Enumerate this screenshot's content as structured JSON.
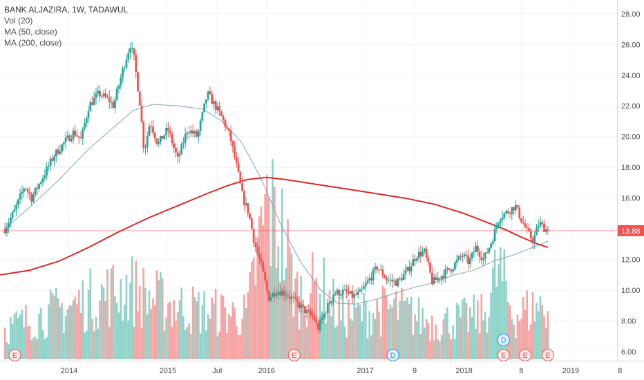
{
  "legend": {
    "title": "BANK ALJAZIRA, 1W, TADAWUL",
    "vol": "Vol (20)",
    "ma50": "MA (50, close)",
    "ma200": "MA (200, close)"
  },
  "colors": {
    "up": "#26a69a",
    "down": "#ef5350",
    "vol_up": "#8fd2c7",
    "vol_down": "#f5a3a2",
    "ma50": "#7fa8b8",
    "ma200": "#e02727",
    "price_line": "#ef5350",
    "axis_text": "#4a4a4a",
    "grid": "#f0f3fa"
  },
  "chart_data": {
    "type": "candlestick",
    "ylim": [
      5.6,
      28.8
    ],
    "y_ticks": [
      "6.00",
      "8.00",
      "10.00",
      "12.00",
      "14.00",
      "16.00",
      "18.00",
      "20.00",
      "22.00",
      "24.00",
      "26.00",
      "28.00"
    ],
    "x_tick_labels": [
      "2014",
      "2015",
      "Jul",
      "2016",
      "2017",
      "9",
      "2018",
      "8",
      "2019",
      "8"
    ],
    "last_price": "13.88",
    "close_path": [
      [
        2013.35,
        14.0
      ],
      [
        2013.45,
        15.2
      ],
      [
        2013.55,
        16.8
      ],
      [
        2013.62,
        16.0
      ],
      [
        2013.72,
        17.2
      ],
      [
        2013.85,
        18.8
      ],
      [
        2013.95,
        19.6
      ],
      [
        2014.05,
        20.3
      ],
      [
        2014.12,
        19.8
      ],
      [
        2014.2,
        22.0
      ],
      [
        2014.3,
        22.8
      ],
      [
        2014.4,
        22.4
      ],
      [
        2014.45,
        22.0
      ],
      [
        2014.55,
        24.5
      ],
      [
        2014.62,
        26.0
      ],
      [
        2014.66,
        25.0
      ],
      [
        2014.72,
        22.0
      ],
      [
        2014.76,
        19.0
      ],
      [
        2014.82,
        21.0
      ],
      [
        2014.9,
        19.5
      ],
      [
        2015.0,
        20.5
      ],
      [
        2015.1,
        18.5
      ],
      [
        2015.2,
        20.5
      ],
      [
        2015.3,
        20.0
      ],
      [
        2015.4,
        22.8
      ],
      [
        2015.48,
        22.0
      ],
      [
        2015.55,
        21.2
      ],
      [
        2015.63,
        20.0
      ],
      [
        2015.7,
        18.0
      ],
      [
        2015.76,
        16.0
      ],
      [
        2015.82,
        15.0
      ],
      [
        2015.88,
        13.0
      ],
      [
        2015.95,
        11.5
      ],
      [
        2016.02,
        9.5
      ],
      [
        2016.1,
        10.0
      ],
      [
        2016.2,
        9.8
      ],
      [
        2016.3,
        9.2
      ],
      [
        2016.4,
        8.6
      ],
      [
        2016.48,
        8.2
      ],
      [
        2016.52,
        7.5
      ],
      [
        2016.6,
        8.7
      ],
      [
        2016.68,
        9.8
      ],
      [
        2016.78,
        9.9
      ],
      [
        2016.88,
        9.6
      ],
      [
        2016.95,
        9.8
      ],
      [
        2017.05,
        10.8
      ],
      [
        2017.12,
        11.5
      ],
      [
        2017.22,
        10.7
      ],
      [
        2017.32,
        10.5
      ],
      [
        2017.42,
        11.2
      ],
      [
        2017.52,
        12.3
      ],
      [
        2017.6,
        12.5
      ],
      [
        2017.68,
        10.5
      ],
      [
        2017.78,
        11.0
      ],
      [
        2017.88,
        11.5
      ],
      [
        2017.98,
        12.3
      ],
      [
        2018.05,
        11.8
      ],
      [
        2018.12,
        12.8
      ],
      [
        2018.2,
        12.0
      ],
      [
        2018.28,
        13.2
      ],
      [
        2018.36,
        14.8
      ],
      [
        2018.44,
        15.1
      ],
      [
        2018.52,
        15.5
      ],
      [
        2018.58,
        14.6
      ],
      [
        2018.64,
        13.8
      ],
      [
        2018.7,
        13.2
      ],
      [
        2018.76,
        14.4
      ],
      [
        2018.82,
        14.0
      ],
      [
        2018.85,
        13.88
      ]
    ],
    "volume_path": [
      [
        2013.3,
        0.08
      ],
      [
        2014.6,
        0.2
      ],
      [
        2014.8,
        0.17
      ],
      [
        2015.2,
        0.14
      ],
      [
        2015.8,
        0.12
      ],
      [
        2016.0,
        0.42
      ],
      [
        2016.15,
        0.35
      ],
      [
        2016.3,
        0.18
      ],
      [
        2016.55,
        0.2
      ],
      [
        2016.75,
        0.12
      ],
      [
        2017.3,
        0.14
      ],
      [
        2017.7,
        0.1
      ],
      [
        2018.2,
        0.12
      ],
      [
        2018.35,
        0.25
      ],
      [
        2018.5,
        0.12
      ],
      [
        2018.8,
        0.15
      ]
    ],
    "ma50_path": [
      [
        2013.35,
        14.0
      ],
      [
        2013.6,
        15.4
      ],
      [
        2013.9,
        17.2
      ],
      [
        2014.2,
        19.2
      ],
      [
        2014.45,
        20.6
      ],
      [
        2014.65,
        21.7
      ],
      [
        2014.85,
        22.1
      ],
      [
        2015.1,
        22.0
      ],
      [
        2015.35,
        21.8
      ],
      [
        2015.55,
        21.0
      ],
      [
        2015.75,
        19.6
      ],
      [
        2015.95,
        17.2
      ],
      [
        2016.15,
        14.2
      ],
      [
        2016.35,
        11.8
      ],
      [
        2016.55,
        10.0
      ],
      [
        2016.72,
        9.15
      ],
      [
        2016.9,
        9.1
      ],
      [
        2017.1,
        9.4
      ],
      [
        2017.3,
        9.8
      ],
      [
        2017.5,
        10.2
      ],
      [
        2017.7,
        10.5
      ],
      [
        2017.9,
        11.0
      ],
      [
        2018.1,
        11.3
      ],
      [
        2018.3,
        11.9
      ],
      [
        2018.5,
        12.3
      ],
      [
        2018.7,
        12.8
      ],
      [
        2018.85,
        13.2
      ]
    ],
    "ma200_path": [
      [
        2013.3,
        11.0
      ],
      [
        2013.6,
        11.3
      ],
      [
        2013.9,
        11.9
      ],
      [
        2014.2,
        12.8
      ],
      [
        2014.5,
        13.8
      ],
      [
        2014.8,
        14.7
      ],
      [
        2015.1,
        15.5
      ],
      [
        2015.4,
        16.3
      ],
      [
        2015.6,
        16.8
      ],
      [
        2015.8,
        17.2
      ],
      [
        2016.0,
        17.35
      ],
      [
        2016.2,
        17.2
      ],
      [
        2016.5,
        16.9
      ],
      [
        2016.8,
        16.6
      ],
      [
        2017.1,
        16.3
      ],
      [
        2017.4,
        16.0
      ],
      [
        2017.7,
        15.6
      ],
      [
        2018.0,
        15.0
      ],
      [
        2018.2,
        14.5
      ],
      [
        2018.4,
        14.0
      ],
      [
        2018.6,
        13.4
      ],
      [
        2018.75,
        13.0
      ],
      [
        2018.85,
        12.8
      ]
    ],
    "events": [
      {
        "label": "E",
        "kind": "earnings",
        "x": 2013.45
      },
      {
        "label": "E",
        "kind": "earnings",
        "x": 2016.28
      },
      {
        "label": "D",
        "kind": "dividend",
        "x": 2017.28
      },
      {
        "label": "D",
        "kind": "dividend",
        "x": 2018.4,
        "stack": 1
      },
      {
        "label": "E",
        "kind": "earnings",
        "x": 2018.4
      },
      {
        "label": "E",
        "kind": "earnings",
        "x": 2018.62
      },
      {
        "label": "E",
        "kind": "earnings",
        "x": 2018.85
      }
    ]
  }
}
